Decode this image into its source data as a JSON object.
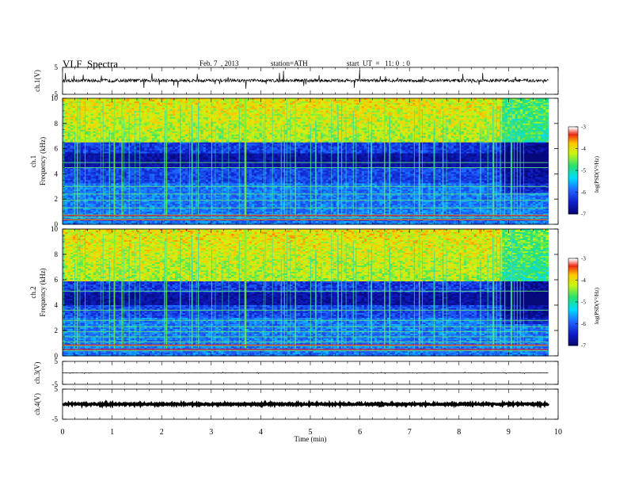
{
  "header": {
    "title": "VLF  Spectra",
    "date": "Feb. 7  , 2013",
    "station": "station=ATH",
    "start": "start  UT  =   11: 0  : 0"
  },
  "chart_data": {
    "type": "heatmap",
    "xlabel": "Time  (min)",
    "xlim": [
      0,
      10
    ],
    "x_ticks": [
      "0",
      "1",
      "2",
      "3",
      "4",
      "5",
      "6",
      "7",
      "8",
      "9",
      "10"
    ],
    "data_end_min": 9.8,
    "panels": [
      {
        "kind": "waveform",
        "ylabel": "ch.1(V)",
        "ylim": [
          -5,
          5
        ],
        "y_ticks": [
          "5",
          "-5"
        ],
        "level_v": 0.1,
        "noise_v": 0.6,
        "spike_v": 3.5
      },
      {
        "kind": "spectrogram",
        "ylabel_channel": "ch.1",
        "ylabel": "Frequency  (kHz)",
        "ylim": [
          0,
          10
        ],
        "y_ticks": [
          "0",
          "2",
          "4",
          "6",
          "8",
          "10"
        ],
        "colorbar": {
          "label": "log(PSD(V²/Hz)",
          "ticks": [
            "-3",
            "-4",
            "-5",
            "-6",
            "-7"
          ],
          "range": [
            -7,
            -3
          ]
        },
        "band_edges_khz": [
          6.5,
          5.6,
          4.5,
          3.2
        ],
        "lines_khz": [
          0.4,
          0.55,
          0.75,
          1.3,
          1.9,
          2.4,
          3.0,
          4.5,
          4.9
        ],
        "red_lines_khz": [
          0.35,
          0.7
        ],
        "change_time_min": 8.87
      },
      {
        "kind": "spectrogram",
        "ylabel_channel": "ch.2",
        "ylabel": "Frequency  (kHz)",
        "ylim": [
          0,
          10
        ],
        "y_ticks": [
          "0",
          "2",
          "4",
          "6",
          "8",
          "10"
        ],
        "colorbar": {
          "label": "log(PSD(V²/Hz)",
          "ticks": [
            "-3",
            "-4",
            "-5",
            "-6",
            "-7"
          ],
          "range": [
            -7,
            -3
          ]
        },
        "band_edges_khz": [
          5.9,
          5.0,
          4.0,
          3.0
        ],
        "lines_khz": [
          0.4,
          0.8,
          1.1,
          1.5,
          1.9,
          2.3,
          2.8,
          3.6,
          5.1
        ],
        "red_lines_khz": [
          0.5,
          0.85
        ],
        "change_time_min": 8.87
      },
      {
        "kind": "waveform",
        "ylabel": "ch.3(V)",
        "ylim": [
          -5,
          5
        ],
        "y_ticks": [
          "5",
          "-5"
        ],
        "level_v": 0.0,
        "noise_v": 0.05,
        "spike_v": 0.3
      },
      {
        "kind": "waveform",
        "ylabel": "ch.4(V)",
        "ylim": [
          -5,
          5
        ],
        "y_ticks": [
          "5",
          "-5"
        ],
        "level_v": 0.0,
        "noise_v": 0.25,
        "spike_v": 0.0
      }
    ]
  }
}
